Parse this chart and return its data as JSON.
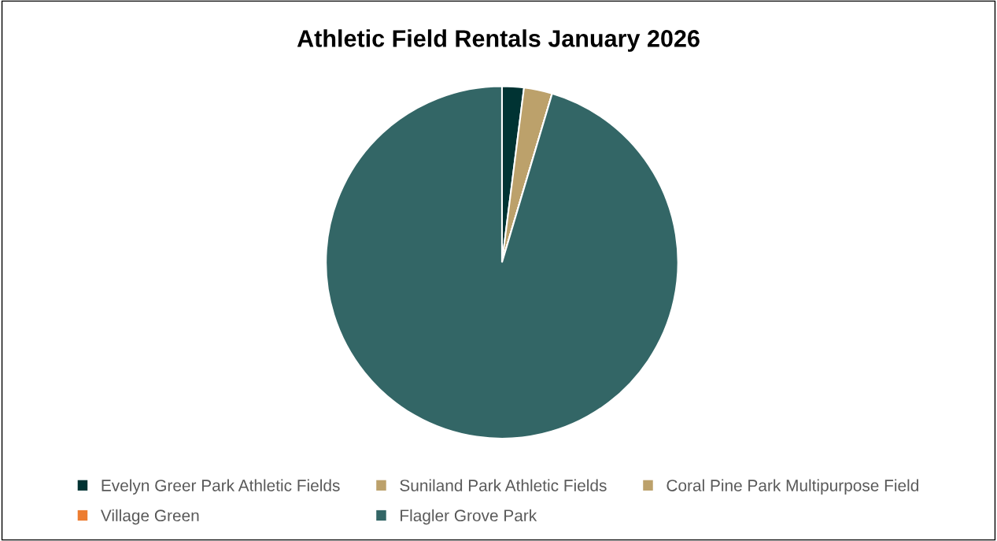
{
  "chart_data": {
    "type": "pie",
    "title": "Athletic Field Rentals January 2026",
    "categories": [
      "Evelyn Greer Park Athletic Fields",
      "Suniland Park Athletic Fields",
      "Coral Pine Park Multipurpose Field",
      "Village Green",
      "Flagler Grove Park"
    ],
    "values": [
      2.0,
      2.6,
      0,
      0,
      95.4
    ],
    "colors": [
      "#003333",
      "#bca16b",
      "#bca16b",
      "#ed7d31",
      "#336666"
    ],
    "legend": "bottom"
  }
}
